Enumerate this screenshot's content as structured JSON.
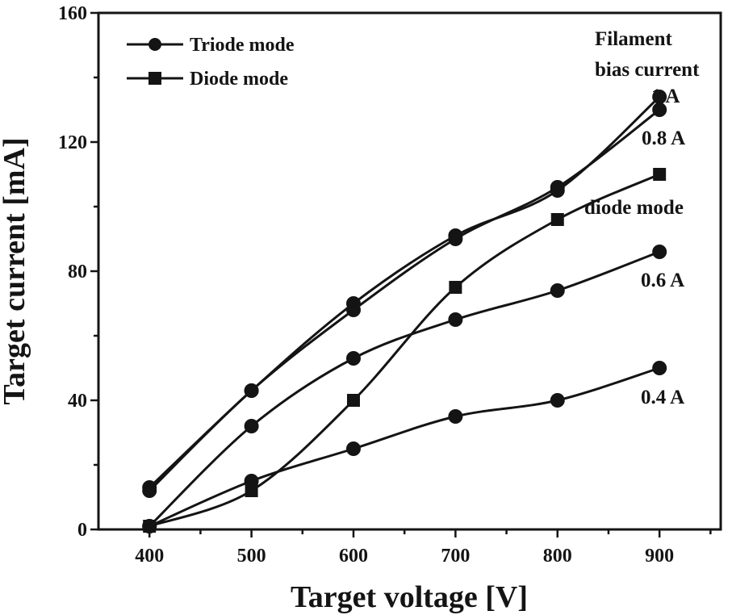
{
  "chart_data": {
    "type": "line",
    "xlabel": "Target voltage [V]",
    "ylabel": "Target current [mA]",
    "xlim": [
      350,
      960
    ],
    "ylim": [
      0,
      160
    ],
    "x_ticks": [
      400,
      500,
      600,
      700,
      800,
      900
    ],
    "y_ticks": [
      0,
      40,
      80,
      120,
      160
    ],
    "grid": false,
    "legend": {
      "placement": "top-left",
      "entries": [
        {
          "label": "Triode mode",
          "marker": "circle"
        },
        {
          "label": "Diode mode",
          "marker": "square"
        }
      ]
    },
    "annotations": {
      "header": [
        "Filament",
        "bias current"
      ],
      "labels": [
        "1 A",
        "0.8 A",
        "diode mode",
        "0.6 A",
        "0.4 A"
      ]
    },
    "series": [
      {
        "name": "1 A",
        "marker": "circle",
        "x": [
          400,
          500,
          600,
          700,
          800,
          900
        ],
        "y": [
          13,
          43,
          70,
          91,
          105,
          134
        ]
      },
      {
        "name": "0.8 A",
        "marker": "circle",
        "x": [
          400,
          500,
          600,
          700,
          800,
          900
        ],
        "y": [
          12,
          43,
          68,
          90,
          106,
          130
        ]
      },
      {
        "name": "diode mode",
        "marker": "square",
        "x": [
          400,
          500,
          600,
          700,
          800,
          900
        ],
        "y": [
          1,
          12,
          40,
          75,
          96,
          110
        ]
      },
      {
        "name": "0.6 A",
        "marker": "circle",
        "x": [
          400,
          500,
          600,
          700,
          800,
          900
        ],
        "y": [
          1,
          32,
          53,
          65,
          74,
          86
        ]
      },
      {
        "name": "0.4 A",
        "marker": "circle",
        "x": [
          400,
          500,
          600,
          700,
          800,
          900
        ],
        "y": [
          1,
          15,
          25,
          35,
          40,
          50
        ]
      }
    ]
  }
}
